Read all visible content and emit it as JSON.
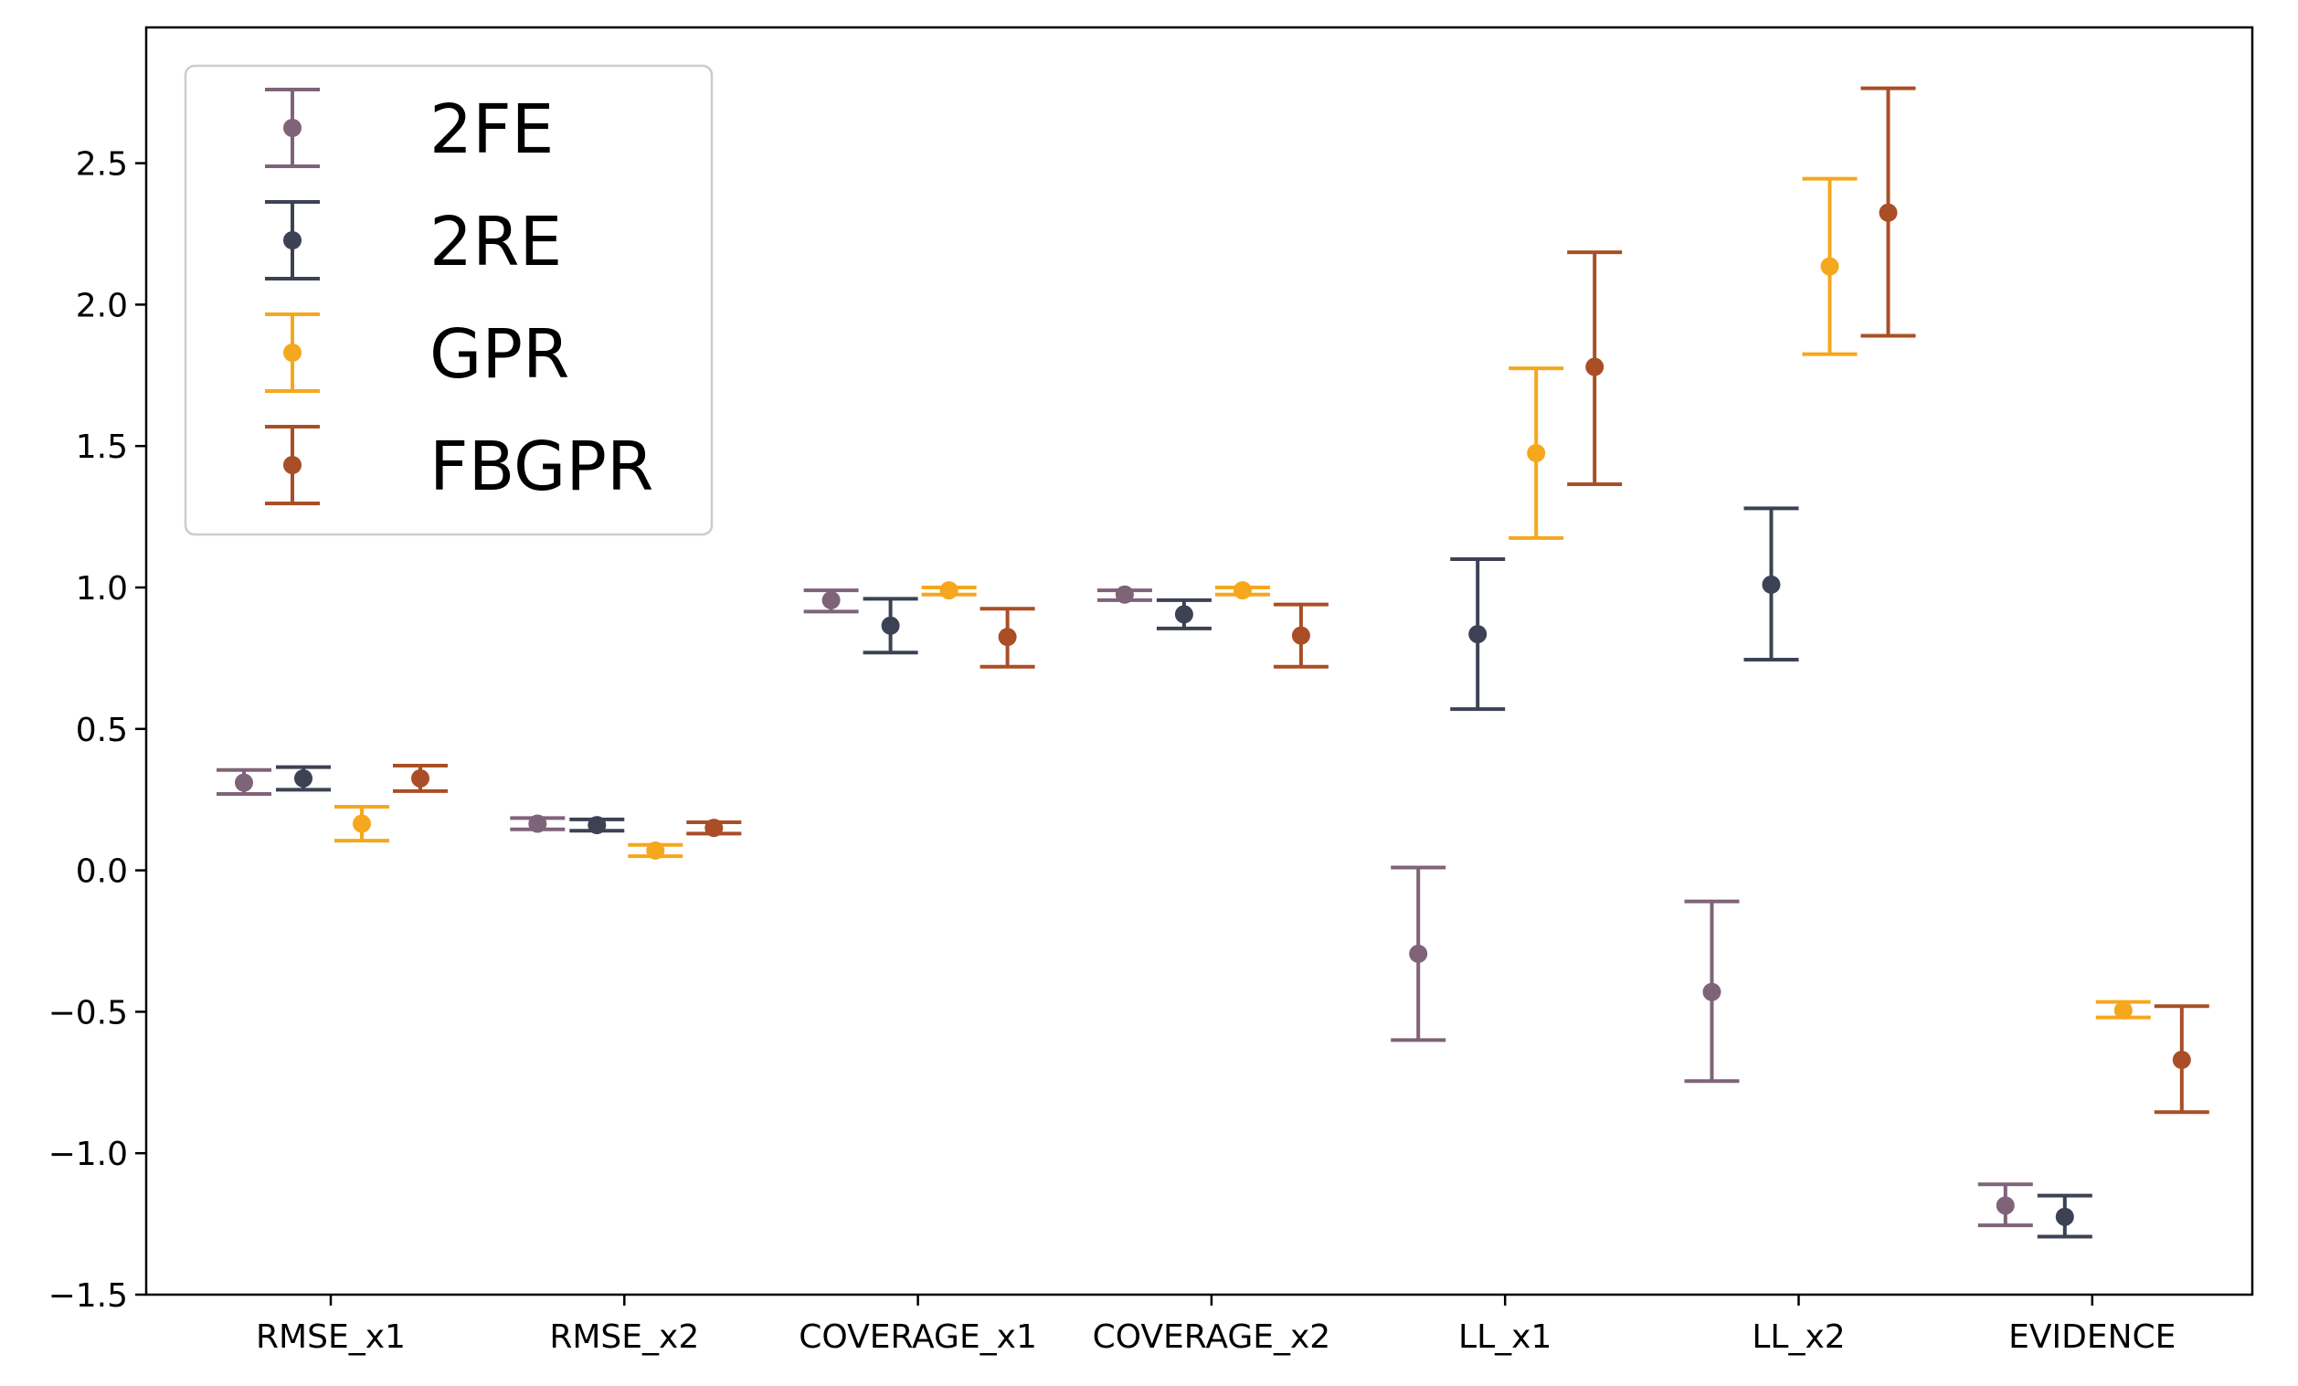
{
  "chart_data": {
    "type": "errorbar",
    "title": "",
    "xlabel": "",
    "ylabel": "",
    "categories": [
      "RMSE_x1",
      "RMSE_x2",
      "COVERAGE_x1",
      "COVERAGE_x2",
      "LL_x1",
      "LL_x2",
      "EVIDENCE"
    ],
    "ylim": [
      -1.5,
      2.98
    ],
    "yticks": [
      -1.5,
      -1.0,
      -0.5,
      0.0,
      0.5,
      1.0,
      1.5,
      2.0,
      2.5
    ],
    "ytick_labels": [
      "−1.5",
      "−1.0",
      "−0.5",
      "0.0",
      "0.5",
      "1.0",
      "1.5",
      "2.0",
      "2.5"
    ],
    "grid": false,
    "legend_position": "top-left",
    "series": [
      {
        "name": "2FE",
        "color": "#7f6379",
        "values": [
          0.31,
          0.165,
          0.955,
          0.975,
          -0.295,
          -0.43,
          -1.185
        ],
        "err_low": [
          0.27,
          0.145,
          0.915,
          0.955,
          -0.6,
          -0.745,
          -1.255
        ],
        "err_high": [
          0.355,
          0.185,
          0.99,
          0.99,
          0.01,
          -0.11,
          -1.11
        ]
      },
      {
        "name": "2RE",
        "color": "#3c4254",
        "values": [
          0.325,
          0.16,
          0.865,
          0.905,
          0.835,
          1.01,
          -1.225
        ],
        "err_low": [
          0.285,
          0.14,
          0.77,
          0.855,
          0.57,
          0.745,
          -1.295
        ],
        "err_high": [
          0.365,
          0.18,
          0.96,
          0.955,
          1.1,
          1.28,
          -1.15
        ]
      },
      {
        "name": "GPR",
        "color": "#f5a71d",
        "values": [
          0.165,
          0.07,
          0.99,
          0.99,
          1.475,
          2.135,
          -0.495
        ],
        "err_low": [
          0.105,
          0.05,
          0.975,
          0.975,
          1.175,
          1.825,
          -0.52
        ],
        "err_high": [
          0.225,
          0.09,
          1.0,
          1.0,
          1.775,
          2.445,
          -0.465
        ]
      },
      {
        "name": "FBGPR",
        "color": "#a94e26",
        "values": [
          0.325,
          0.15,
          0.825,
          0.83,
          1.78,
          2.325,
          -0.67
        ],
        "err_low": [
          0.28,
          0.13,
          0.72,
          0.72,
          1.365,
          1.89,
          -0.855
        ],
        "err_high": [
          0.37,
          0.17,
          0.925,
          0.94,
          2.185,
          2.765,
          -0.48
        ]
      }
    ]
  }
}
